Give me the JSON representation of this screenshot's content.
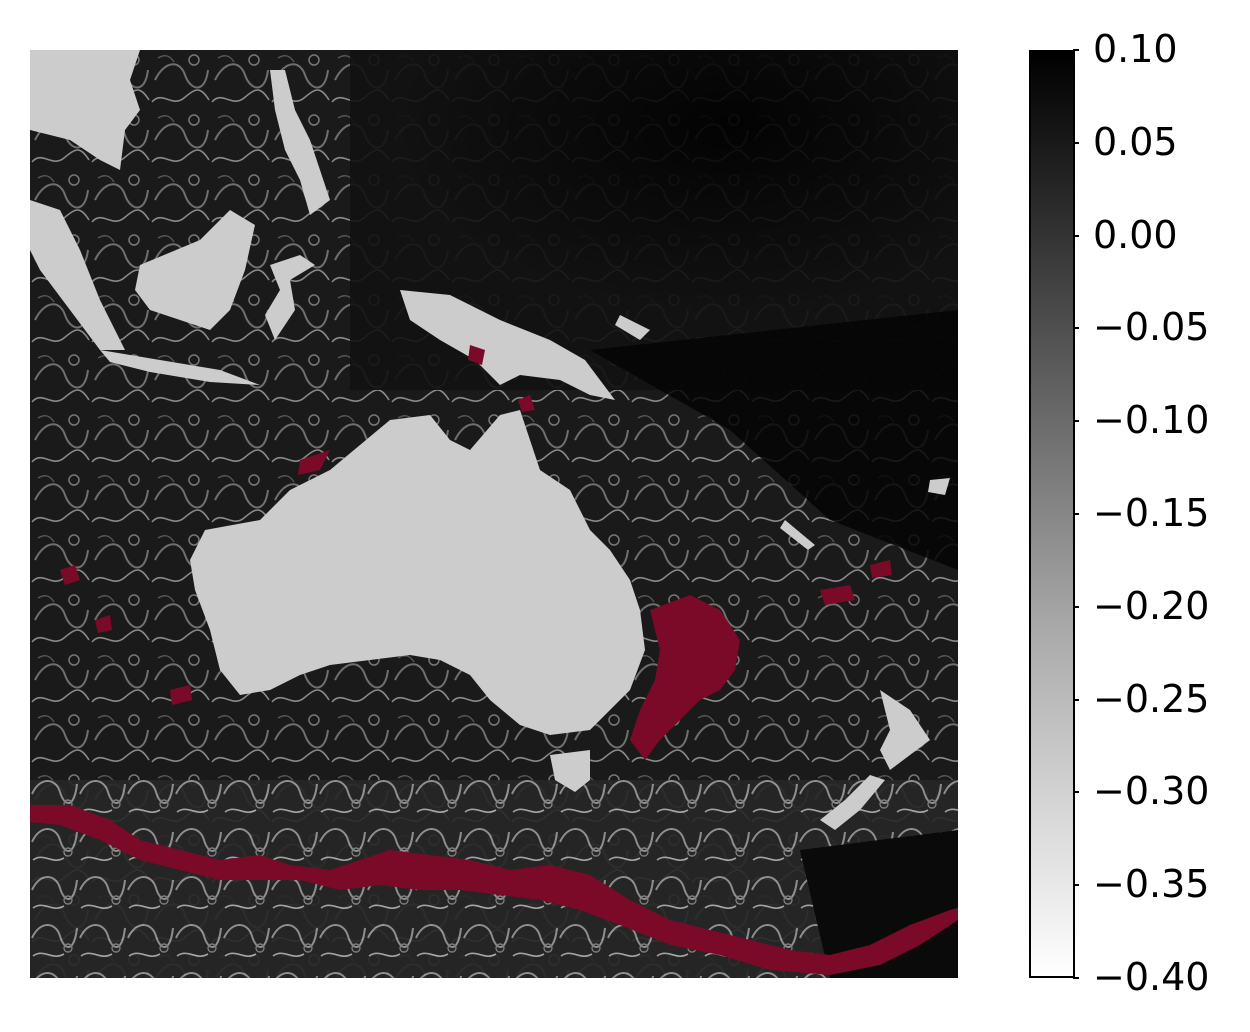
{
  "map": {
    "region": "Australia / Indonesia / New Zealand / SW Pacific",
    "land_color": "#cccccc",
    "ocean_colormap": "grayscale (white = -0.40, black = 0.10)",
    "highlight_color": "#7a0a28"
  },
  "colorbar": {
    "min": -0.4,
    "max": 0.1,
    "ticks": [
      "0.10",
      "0.05",
      "0.00",
      "−0.05",
      "−0.10",
      "−0.15",
      "−0.20",
      "−0.25",
      "−0.30",
      "−0.35",
      "−0.40"
    ]
  }
}
